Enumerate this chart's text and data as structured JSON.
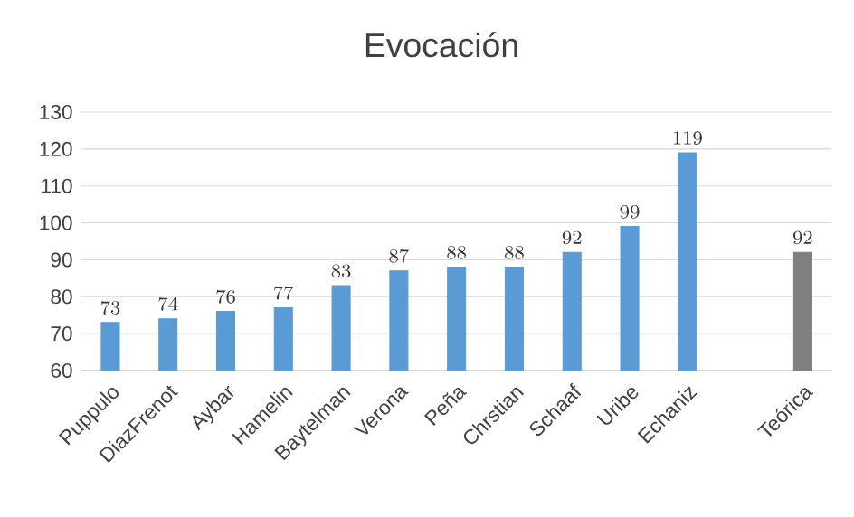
{
  "chart_data": {
    "type": "bar",
    "title": "Evocación",
    "categories": [
      "Puppulo",
      "DiazFrenot",
      "Aybar",
      "Hamelin",
      "Baytelman",
      "Verona",
      "Peña",
      "Chrstian",
      "Schaaf",
      "Uribe",
      "Echaniz",
      null,
      "Teórica"
    ],
    "values": [
      73,
      74,
      76,
      77,
      83,
      87,
      88,
      88,
      92,
      99,
      119,
      null,
      92
    ],
    "colors": [
      "#5b9bd5",
      "#5b9bd5",
      "#5b9bd5",
      "#5b9bd5",
      "#5b9bd5",
      "#5b9bd5",
      "#5b9bd5",
      "#5b9bd5",
      "#5b9bd5",
      "#5b9bd5",
      "#5b9bd5",
      "#5b9bd5",
      "#7f7f7f"
    ],
    "ylim": [
      60,
      130
    ],
    "yticks": [
      60,
      70,
      80,
      90,
      100,
      110,
      120,
      130
    ],
    "grid": "y",
    "data_labels": true
  }
}
